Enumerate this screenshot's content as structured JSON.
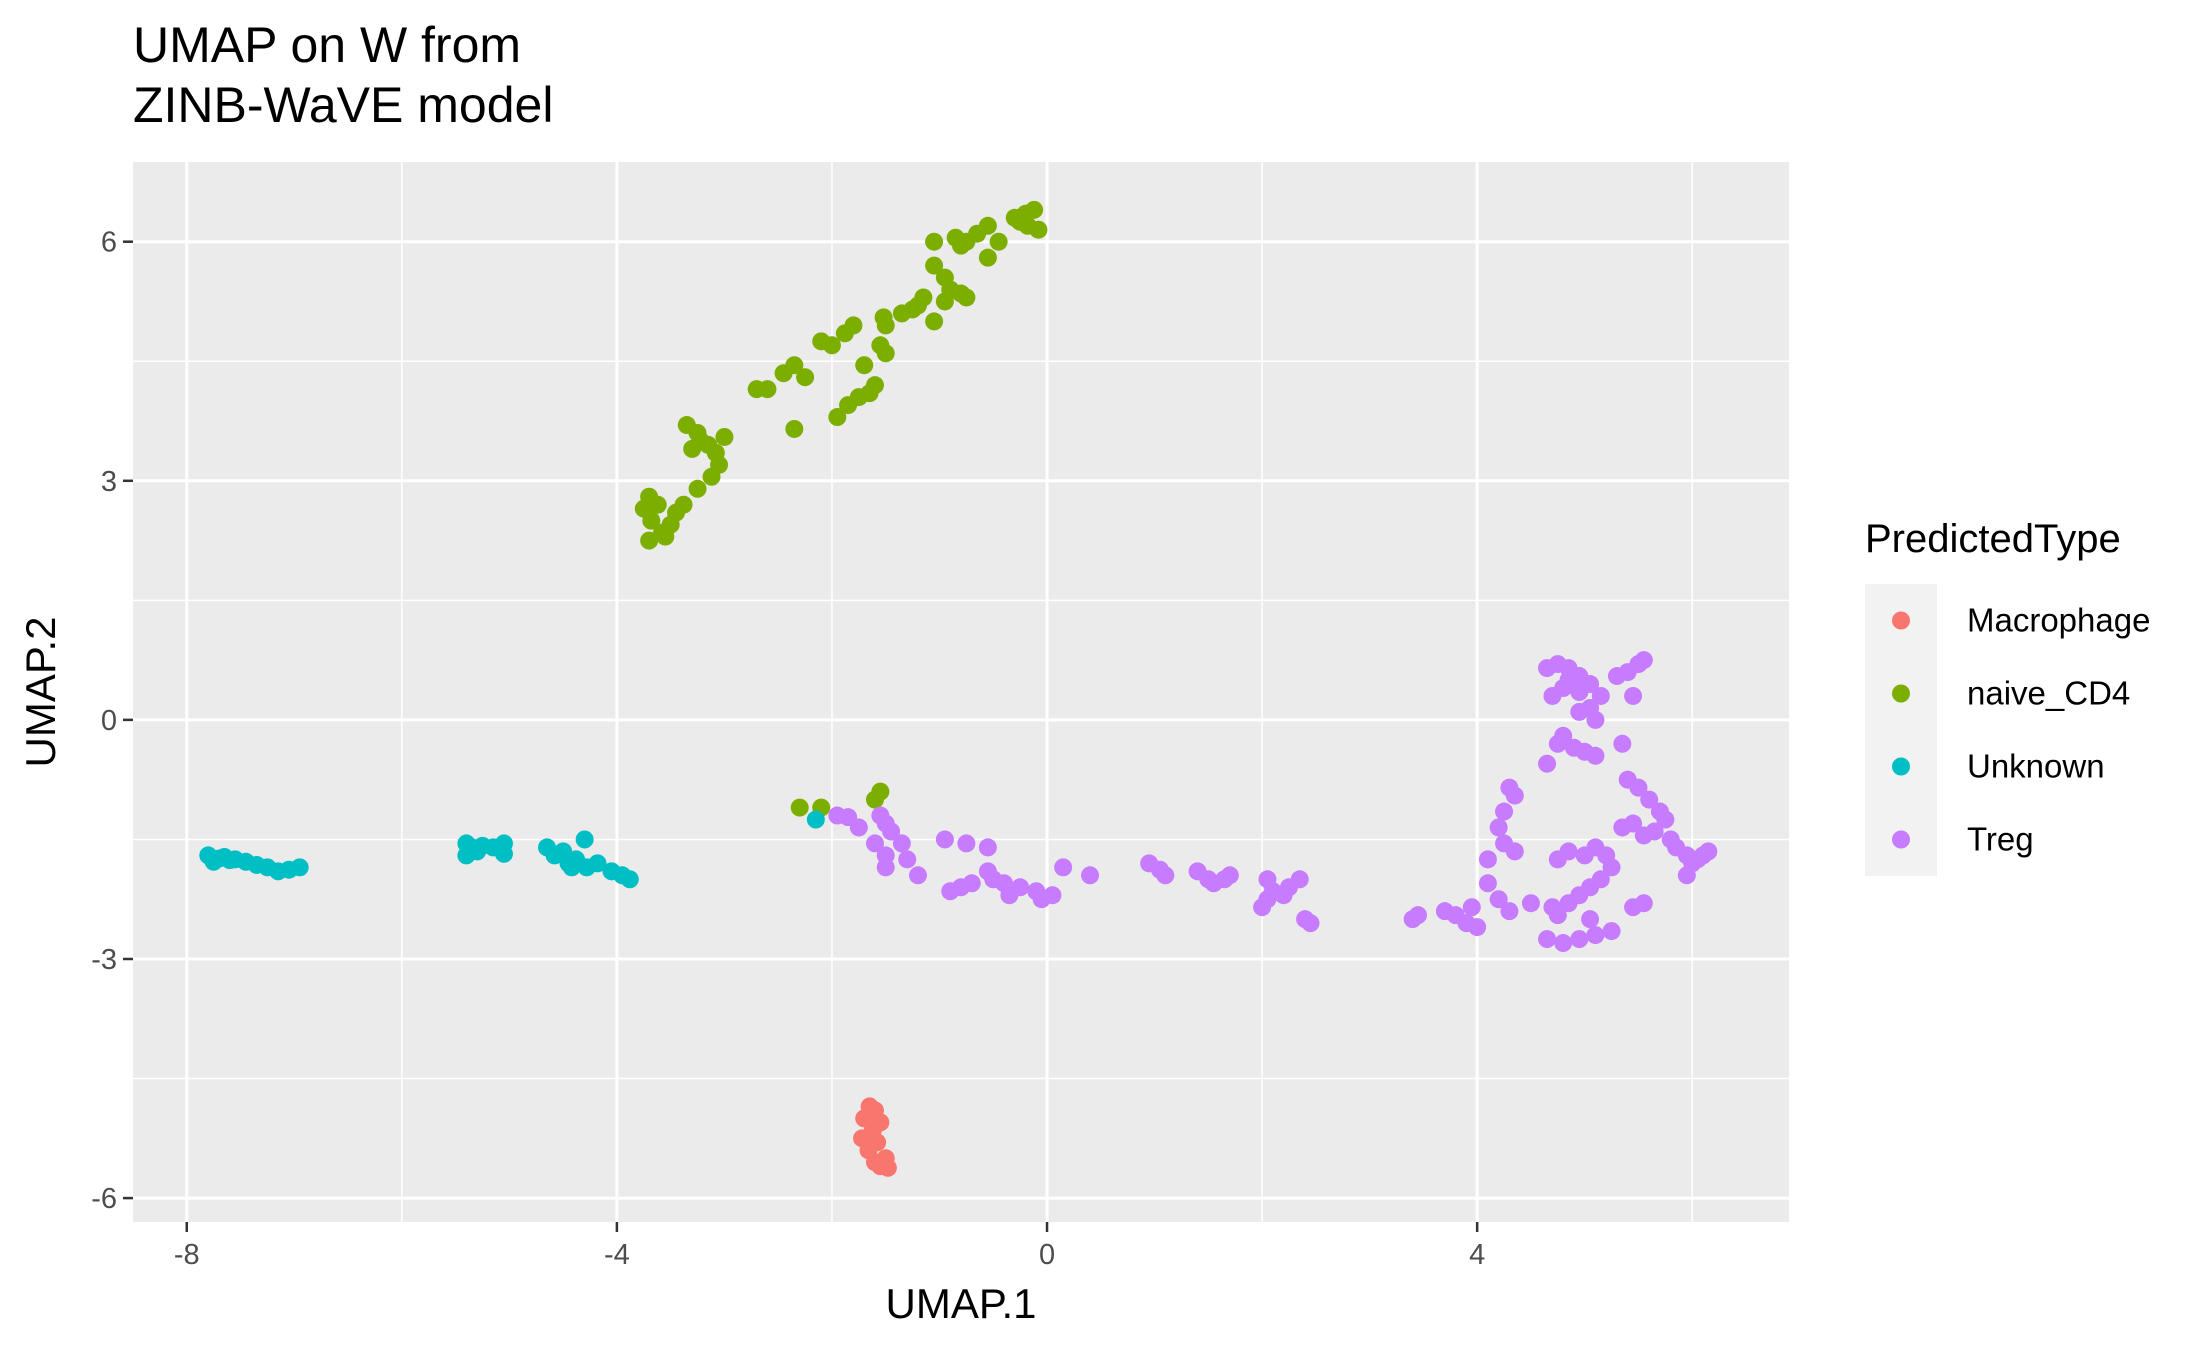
{
  "chart_data": {
    "type": "scatter",
    "title": "UMAP on W from\nZINB-WaVE model",
    "xlabel": "UMAP.1",
    "ylabel": "UMAP.2",
    "xlim": [
      -8.5,
      6.9
    ],
    "ylim": [
      -6.3,
      7.0
    ],
    "xticks": [
      -8,
      -4,
      0,
      4
    ],
    "yticks": [
      -6,
      -3,
      0,
      3,
      6
    ],
    "x_minor": [
      -6,
      -2,
      2,
      6
    ],
    "y_minor": [
      -4.5,
      -1.5,
      1.5,
      4.5
    ],
    "grid": true,
    "panel_background": "#ebebeb",
    "legend_position": "right",
    "legend": {
      "title": "PredictedType",
      "entries": [
        "Macrophage",
        "naive_CD4",
        "Unknown",
        "Treg"
      ]
    },
    "series": [
      {
        "name": "Macrophage",
        "color": "#F8766D",
        "points": [
          [
            -1.65,
            -4.85
          ],
          [
            -1.6,
            -4.9
          ],
          [
            -1.7,
            -5.0
          ],
          [
            -1.55,
            -5.05
          ],
          [
            -1.62,
            -5.15
          ],
          [
            -1.72,
            -5.25
          ],
          [
            -1.58,
            -5.3
          ],
          [
            -1.66,
            -5.4
          ],
          [
            -1.5,
            -5.5
          ],
          [
            -1.6,
            -5.55
          ],
          [
            -1.55,
            -5.6
          ],
          [
            -1.48,
            -5.62
          ]
        ]
      },
      {
        "name": "naive_CD4",
        "color": "#7CAE00",
        "points": [
          [
            -3.75,
            2.65
          ],
          [
            -3.7,
            2.8
          ],
          [
            -3.62,
            2.7
          ],
          [
            -3.68,
            2.5
          ],
          [
            -3.58,
            2.35
          ],
          [
            -3.5,
            2.45
          ],
          [
            -3.45,
            2.6
          ],
          [
            -3.38,
            2.7
          ],
          [
            -3.7,
            2.25
          ],
          [
            -3.55,
            2.3
          ],
          [
            -3.25,
            2.9
          ],
          [
            -3.12,
            3.05
          ],
          [
            -3.05,
            3.2
          ],
          [
            -3.3,
            3.4
          ],
          [
            -3.22,
            3.5
          ],
          [
            -3.15,
            3.45
          ],
          [
            -3.08,
            3.35
          ],
          [
            -3.0,
            3.55
          ],
          [
            -3.35,
            3.7
          ],
          [
            -3.25,
            3.6
          ],
          [
            -2.7,
            4.15
          ],
          [
            -2.6,
            4.15
          ],
          [
            -2.45,
            4.35
          ],
          [
            -2.35,
            4.45
          ],
          [
            -2.25,
            4.3
          ],
          [
            -2.35,
            3.65
          ],
          [
            -2.1,
            4.75
          ],
          [
            -2.0,
            4.7
          ],
          [
            -1.88,
            4.85
          ],
          [
            -1.8,
            4.95
          ],
          [
            -1.95,
            3.8
          ],
          [
            -1.85,
            3.95
          ],
          [
            -1.75,
            4.05
          ],
          [
            -1.65,
            4.1
          ],
          [
            -1.6,
            4.2
          ],
          [
            -1.55,
            4.7
          ],
          [
            -1.5,
            4.6
          ],
          [
            -1.52,
            5.05
          ],
          [
            -1.5,
            4.95
          ],
          [
            -1.35,
            5.1
          ],
          [
            -1.2,
            5.2
          ],
          [
            -1.15,
            5.3
          ],
          [
            -1.25,
            5.15
          ],
          [
            -1.05,
            5.0
          ],
          [
            -0.95,
            5.25
          ],
          [
            -0.9,
            5.4
          ],
          [
            -0.8,
            5.35
          ],
          [
            -0.75,
            5.3
          ],
          [
            -1.05,
            5.7
          ],
          [
            -0.95,
            5.55
          ],
          [
            -1.05,
            6.0
          ],
          [
            -0.85,
            6.05
          ],
          [
            -0.75,
            6.0
          ],
          [
            -0.8,
            5.95
          ],
          [
            -0.65,
            6.1
          ],
          [
            -0.55,
            6.2
          ],
          [
            -0.45,
            6.0
          ],
          [
            -0.55,
            5.8
          ],
          [
            -0.3,
            6.3
          ],
          [
            -0.2,
            6.35
          ],
          [
            -0.12,
            6.4
          ],
          [
            -0.18,
            6.2
          ],
          [
            -0.08,
            6.15
          ],
          [
            -0.25,
            6.25
          ],
          [
            -1.7,
            4.45
          ],
          [
            -2.3,
            -1.1
          ],
          [
            -2.1,
            -1.1
          ],
          [
            -1.55,
            -0.9
          ],
          [
            -1.6,
            -1.0
          ]
        ]
      },
      {
        "name": "Unknown",
        "color": "#00BFC4",
        "points": [
          [
            -7.8,
            -1.7
          ],
          [
            -7.75,
            -1.78
          ],
          [
            -7.65,
            -1.72
          ],
          [
            -7.55,
            -1.75
          ],
          [
            -7.45,
            -1.78
          ],
          [
            -7.35,
            -1.82
          ],
          [
            -7.25,
            -1.85
          ],
          [
            -7.15,
            -1.9
          ],
          [
            -7.05,
            -1.88
          ],
          [
            -6.95,
            -1.85
          ],
          [
            -7.7,
            -1.74
          ],
          [
            -7.6,
            -1.76
          ],
          [
            -5.4,
            -1.55
          ],
          [
            -5.35,
            -1.6
          ],
          [
            -5.3,
            -1.65
          ],
          [
            -5.25,
            -1.58
          ],
          [
            -5.15,
            -1.6
          ],
          [
            -5.05,
            -1.55
          ],
          [
            -5.05,
            -1.68
          ],
          [
            -5.4,
            -1.7
          ],
          [
            -4.65,
            -1.6
          ],
          [
            -4.58,
            -1.7
          ],
          [
            -4.5,
            -1.65
          ],
          [
            -4.45,
            -1.8
          ],
          [
            -4.38,
            -1.75
          ],
          [
            -4.28,
            -1.85
          ],
          [
            -4.18,
            -1.8
          ],
          [
            -4.3,
            -1.5
          ],
          [
            -4.05,
            -1.9
          ],
          [
            -3.95,
            -1.95
          ],
          [
            -3.88,
            -2.0
          ],
          [
            -4.42,
            -1.85
          ],
          [
            -2.15,
            -1.25
          ]
        ]
      },
      {
        "name": "Treg",
        "color": "#C77CFF",
        "points": [
          [
            -1.95,
            -1.2
          ],
          [
            -1.85,
            -1.22
          ],
          [
            -1.75,
            -1.35
          ],
          [
            -1.55,
            -1.2
          ],
          [
            -1.5,
            -1.3
          ],
          [
            -1.45,
            -1.4
          ],
          [
            -1.35,
            -1.55
          ],
          [
            -1.6,
            -1.55
          ],
          [
            -1.5,
            -1.7
          ],
          [
            -1.3,
            -1.75
          ],
          [
            -1.5,
            -1.85
          ],
          [
            -1.2,
            -1.95
          ],
          [
            -0.95,
            -1.5
          ],
          [
            -0.75,
            -1.55
          ],
          [
            -0.55,
            -1.6
          ],
          [
            -0.9,
            -2.15
          ],
          [
            -0.8,
            -2.1
          ],
          [
            -0.7,
            -2.05
          ],
          [
            -0.55,
            -1.9
          ],
          [
            -0.5,
            -2.0
          ],
          [
            -0.4,
            -2.05
          ],
          [
            -0.35,
            -2.2
          ],
          [
            -0.25,
            -2.1
          ],
          [
            -0.1,
            -2.15
          ],
          [
            -0.05,
            -2.25
          ],
          [
            0.05,
            -2.2
          ],
          [
            0.15,
            -1.85
          ],
          [
            0.4,
            -1.95
          ],
          [
            0.95,
            -1.8
          ],
          [
            1.05,
            -1.88
          ],
          [
            1.1,
            -1.95
          ],
          [
            1.4,
            -1.9
          ],
          [
            1.5,
            -2.0
          ],
          [
            1.55,
            -2.05
          ],
          [
            1.65,
            -2.0
          ],
          [
            1.7,
            -1.95
          ],
          [
            2.0,
            -2.35
          ],
          [
            2.05,
            -2.25
          ],
          [
            2.1,
            -2.15
          ],
          [
            2.2,
            -2.2
          ],
          [
            2.25,
            -2.1
          ],
          [
            2.05,
            -2.0
          ],
          [
            2.35,
            -2.0
          ],
          [
            2.4,
            -2.5
          ],
          [
            2.45,
            -2.55
          ],
          [
            3.4,
            -2.5
          ],
          [
            3.45,
            -2.45
          ],
          [
            3.7,
            -2.4
          ],
          [
            3.8,
            -2.45
          ],
          [
            3.9,
            -2.55
          ],
          [
            4.0,
            -2.6
          ],
          [
            3.95,
            -2.35
          ],
          [
            4.1,
            -2.05
          ],
          [
            4.2,
            -2.25
          ],
          [
            4.3,
            -2.4
          ],
          [
            4.1,
            -1.75
          ],
          [
            4.25,
            -1.55
          ],
          [
            4.35,
            -1.65
          ],
          [
            4.2,
            -1.35
          ],
          [
            4.25,
            -1.15
          ],
          [
            4.35,
            -0.95
          ],
          [
            4.3,
            -0.85
          ],
          [
            4.65,
            -0.55
          ],
          [
            4.75,
            -0.3
          ],
          [
            4.8,
            -0.2
          ],
          [
            4.9,
            -0.35
          ],
          [
            5.0,
            -0.4
          ],
          [
            5.1,
            -0.45
          ],
          [
            4.7,
            0.3
          ],
          [
            4.8,
            0.4
          ],
          [
            4.85,
            0.5
          ],
          [
            4.95,
            0.55
          ],
          [
            5.05,
            0.45
          ],
          [
            5.15,
            0.3
          ],
          [
            4.75,
            0.7
          ],
          [
            4.85,
            0.65
          ],
          [
            4.95,
            0.35
          ],
          [
            5.05,
            0.15
          ],
          [
            5.1,
            0.0
          ],
          [
            5.3,
            0.55
          ],
          [
            5.4,
            0.6
          ],
          [
            5.5,
            0.7
          ],
          [
            5.55,
            0.75
          ],
          [
            5.45,
            0.3
          ],
          [
            5.35,
            -0.3
          ],
          [
            4.65,
            0.65
          ],
          [
            4.95,
            0.1
          ],
          [
            4.75,
            -1.75
          ],
          [
            4.85,
            -1.65
          ],
          [
            5.0,
            -1.7
          ],
          [
            5.1,
            -1.6
          ],
          [
            5.2,
            -1.7
          ],
          [
            5.25,
            -1.85
          ],
          [
            5.15,
            -2.0
          ],
          [
            5.05,
            -2.1
          ],
          [
            4.95,
            -2.2
          ],
          [
            4.85,
            -2.3
          ],
          [
            4.75,
            -2.45
          ],
          [
            4.65,
            -2.75
          ],
          [
            4.8,
            -2.8
          ],
          [
            4.95,
            -2.75
          ],
          [
            5.1,
            -2.7
          ],
          [
            5.05,
            -2.5
          ],
          [
            5.25,
            -2.65
          ],
          [
            5.35,
            -1.35
          ],
          [
            5.45,
            -1.3
          ],
          [
            5.55,
            -1.45
          ],
          [
            5.65,
            -1.4
          ],
          [
            5.4,
            -0.75
          ],
          [
            5.5,
            -0.85
          ],
          [
            5.6,
            -1.0
          ],
          [
            5.7,
            -1.15
          ],
          [
            5.75,
            -1.25
          ],
          [
            5.8,
            -1.5
          ],
          [
            5.85,
            -1.6
          ],
          [
            5.45,
            -2.35
          ],
          [
            5.55,
            -2.3
          ],
          [
            4.5,
            -2.3
          ],
          [
            4.7,
            -2.35
          ],
          [
            5.95,
            -1.95
          ],
          [
            6.0,
            -1.8
          ],
          [
            6.05,
            -1.75
          ],
          [
            6.1,
            -1.7
          ],
          [
            6.15,
            -1.65
          ],
          [
            5.95,
            -1.7
          ]
        ]
      }
    ]
  }
}
